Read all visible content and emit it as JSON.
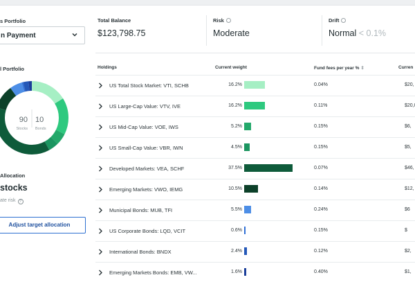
{
  "portfolio": {
    "label": "s Portfolio",
    "selected": "n Payment"
  },
  "summary": {
    "total_balance_label": "Total Balance",
    "total_balance_value": "$123,798.75",
    "risk_label": "Risk",
    "risk_value": "Moderate",
    "drift_label": "Drift",
    "drift_value": "Normal",
    "drift_threshold": "< 0.1%"
  },
  "allocation_chart": {
    "label": "l Portfolio",
    "stocks_count": "90",
    "stocks_label": "Stocks",
    "bonds_count": "10",
    "bonds_label": "Bonds",
    "stocks_pct": 90,
    "bonds_pct": 10,
    "stocks_color": "#1e8a5e",
    "bonds_color": "#2f6fd6"
  },
  "target": {
    "label": "Allocation",
    "value": "stocks",
    "risk_text": "ate risk",
    "button": "Adjust target allocation"
  },
  "table": {
    "headers": {
      "holdings": "Holdings",
      "weight": "Current weight",
      "fees": "Fund fees per year %",
      "current": "Curren"
    },
    "rows": [
      {
        "name": "US Total Stock Market: VTI, SCHB",
        "weight": "16.2%",
        "weight_pct": 16.2,
        "color": "#a6efc4",
        "fee": "0.04%",
        "current": "$20,"
      },
      {
        "name": "US Large-Cap Value: VTV, IVE",
        "weight": "16.2%",
        "weight_pct": 16.2,
        "color": "#2ec97f",
        "fee": "0.11%",
        "current": "$20,0"
      },
      {
        "name": "US Mid-Cap Value: VOE, IWS",
        "weight": "5.2%",
        "weight_pct": 5.2,
        "color": "#23a86a",
        "fee": "0.15%",
        "current": "$6,"
      },
      {
        "name": "US Small-Cap Value: VBR, IWN",
        "weight": "4.5%",
        "weight_pct": 4.5,
        "color": "#1b9560",
        "fee": "0.15%",
        "current": "$5,"
      },
      {
        "name": "Developed Markets: VEA, SCHF",
        "weight": "37.5%",
        "weight_pct": 37.5,
        "color": "#0e5b3a",
        "fee": "0.07%",
        "current": "$46,"
      },
      {
        "name": "Emerging Markets: VWO, IEMG",
        "weight": "10.5%",
        "weight_pct": 10.5,
        "color": "#0c4029",
        "fee": "0.14%",
        "current": "$12,"
      },
      {
        "name": "Municipal Bonds: MUB, TFI",
        "weight": "5.5%",
        "weight_pct": 5.5,
        "color": "#4d8ee6",
        "fee": "0.24%",
        "current": "$6"
      },
      {
        "name": "US Corporate Bonds: LQD, VCIT",
        "weight": "0.6%",
        "weight_pct": 0.6,
        "color": "#2f6fd6",
        "fee": "0.15%",
        "current": "$"
      },
      {
        "name": "International Bonds: BNDX",
        "weight": "2.4%",
        "weight_pct": 2.4,
        "color": "#2458b8",
        "fee": "0.12%",
        "current": "$2,"
      },
      {
        "name": "Emerging Markets Bonds: EMB, VW...",
        "weight": "1.6%",
        "weight_pct": 1.6,
        "color": "#1b3f9a",
        "fee": "0.40%",
        "current": "$1,"
      }
    ]
  }
}
